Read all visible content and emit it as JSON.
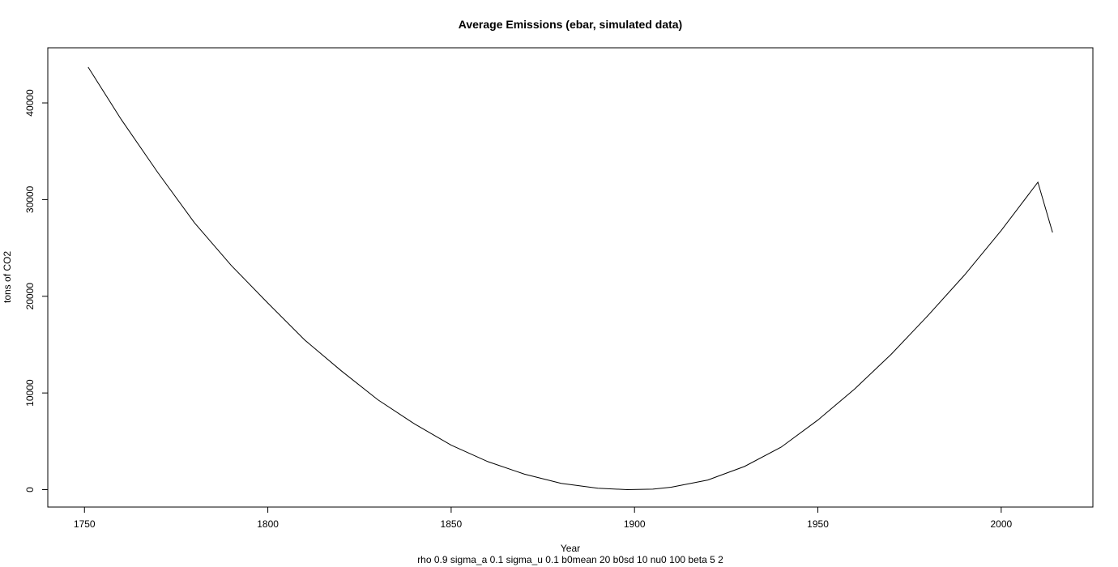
{
  "chart_data": {
    "type": "line",
    "title": "Average Emissions (ebar, simulated data)",
    "xlabel": "Year",
    "ylabel": "tons of CO2",
    "subtitle": "rho 0.9 sigma_a 0.1 sigma_u 0.1 b0mean 20 b0sd 10 nu0 100 beta 5 2",
    "xlim": [
      1740,
      2025
    ],
    "ylim": [
      -1800,
      45700
    ],
    "x_ticks": [
      1750,
      1800,
      1850,
      1900,
      1950,
      2000
    ],
    "y_ticks": [
      0,
      10000,
      20000,
      30000,
      40000
    ],
    "grid": false,
    "legend": "none",
    "line_color": "#000000",
    "series": [
      {
        "x": [
          1751,
          1760,
          1770,
          1780,
          1790,
          1800,
          1810,
          1820,
          1830,
          1840,
          1850,
          1860,
          1870,
          1880,
          1890,
          1898,
          1905,
          1910,
          1920,
          1930,
          1940,
          1950,
          1960,
          1970,
          1980,
          1990,
          2000,
          2010,
          2014
        ],
        "y": [
          43700,
          38300,
          32800,
          27600,
          23200,
          19300,
          15500,
          12300,
          9300,
          6800,
          4600,
          2900,
          1600,
          650,
          150,
          0,
          50,
          250,
          1000,
          2400,
          4400,
          7200,
          10400,
          14000,
          18000,
          22200,
          26800,
          31800,
          26600
        ]
      }
    ]
  }
}
